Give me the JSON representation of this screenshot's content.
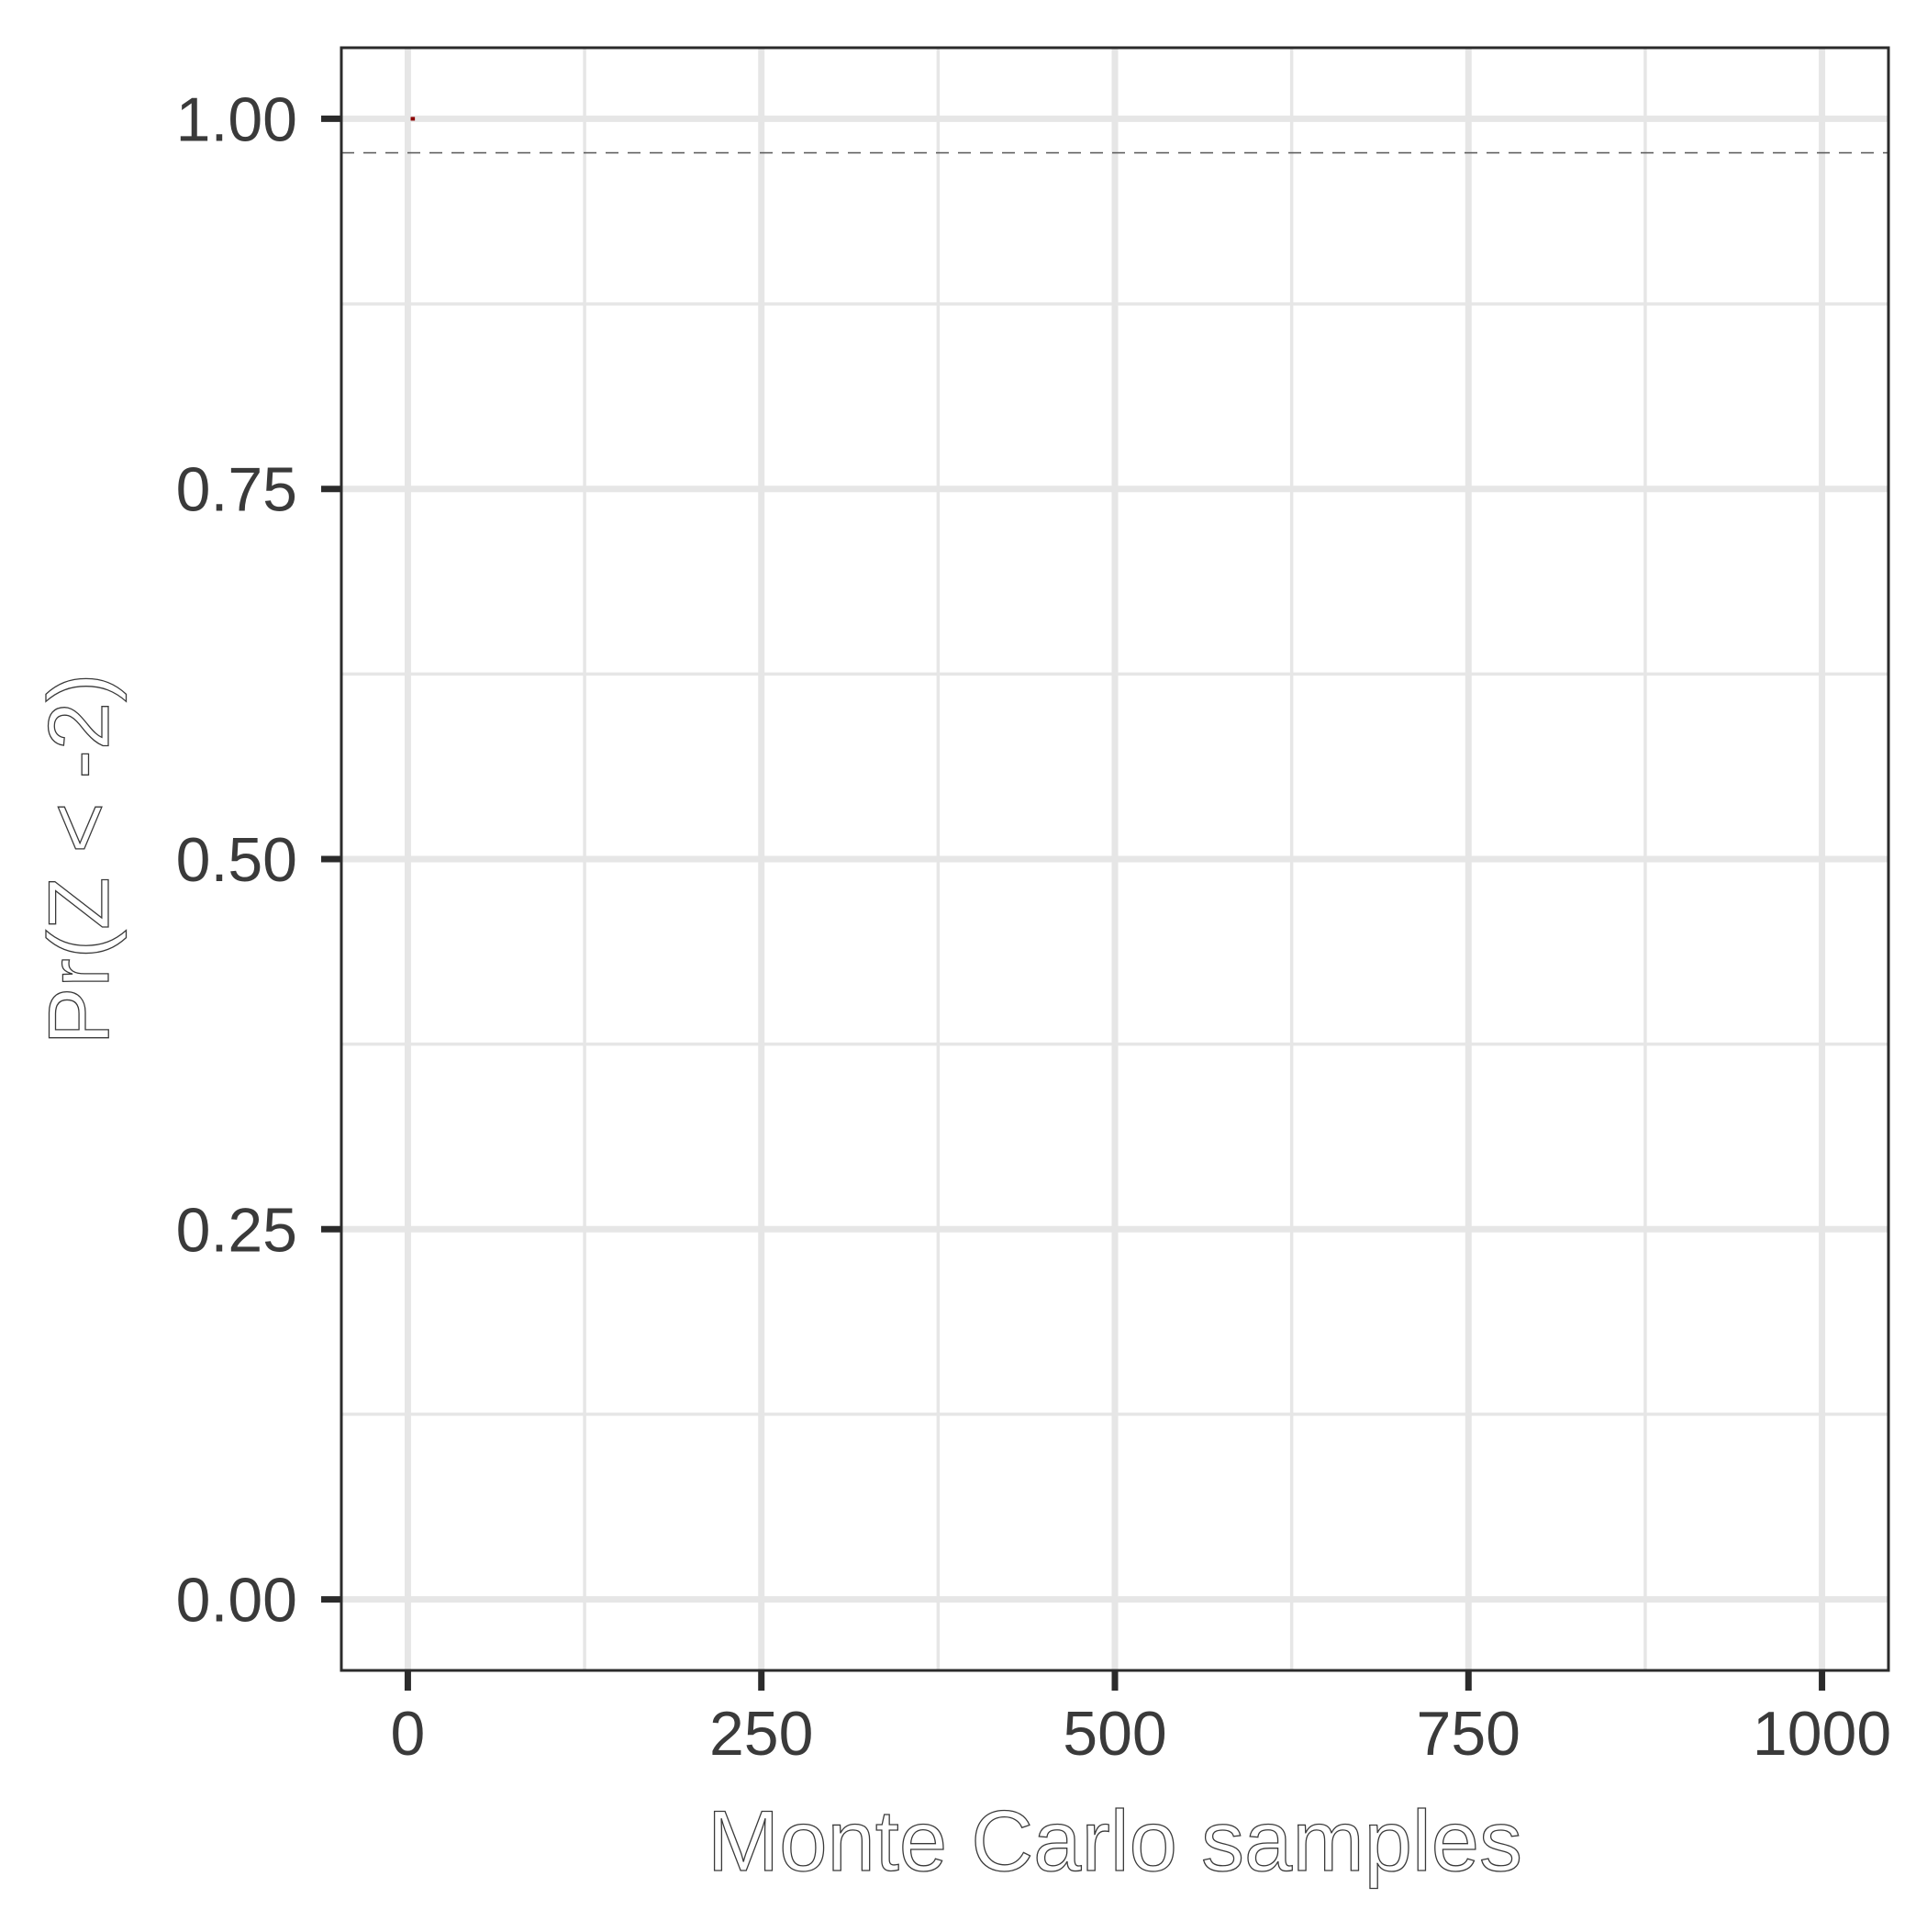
{
  "chart_data": {
    "type": "line",
    "title": "",
    "xlabel": "Monte Carlo samples",
    "ylabel": "Pr(Z < -2)",
    "xlim": [
      -47,
      1047
    ],
    "ylim": [
      -0.048,
      1.048
    ],
    "x_ticks": [
      0,
      250,
      500,
      750,
      1000
    ],
    "x_tick_labels": [
      "0",
      "250",
      "500",
      "750",
      "1000"
    ],
    "x_minor_ticks": [
      125,
      375,
      625,
      875
    ],
    "y_ticks": [
      0.0,
      0.25,
      0.5,
      0.75,
      1.0
    ],
    "y_tick_labels": [
      "0.00",
      "0.25",
      "0.50",
      "0.75",
      "1.00"
    ],
    "y_minor_ticks": [
      0.125,
      0.375,
      0.625,
      0.875
    ],
    "grid": true,
    "legend": "none",
    "reference_line": {
      "y": 0.977,
      "style": "dashed",
      "color": "#555555"
    },
    "series": [
      {
        "x": [
          2,
          3,
          4,
          5
        ],
        "y": [
          1.0,
          1.0,
          1.0,
          1.0
        ],
        "color": "#8b0000"
      }
    ],
    "colors": {
      "grid": "#e6e6e6",
      "axis": "#2b2b2b",
      "text": "#3a3a3a"
    }
  }
}
